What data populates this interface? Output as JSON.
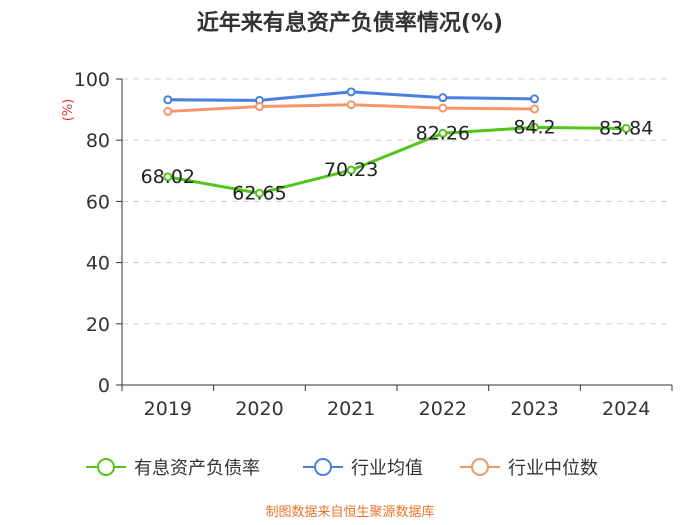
{
  "chart_data": {
    "type": "line",
    "title": "近年来有息资产负债率情况(%)",
    "ylabel": "(%)",
    "xlabel": "",
    "categories": [
      "2019",
      "2020",
      "2021",
      "2022",
      "2023",
      "2024"
    ],
    "ylim": [
      0,
      100
    ],
    "yticks": [
      0,
      20,
      40,
      60,
      80,
      100
    ],
    "grid": true,
    "legend_position": "bottom",
    "series": [
      {
        "name": "有息资产负债率",
        "color": "#52c41a",
        "values": [
          68.02,
          62.65,
          70.23,
          82.26,
          84.2,
          83.84
        ],
        "labels": [
          "68.02",
          "62.65",
          "70.23",
          "82.26",
          "84.2",
          "83.84"
        ]
      },
      {
        "name": "行业均值",
        "color": "#4a7fe0",
        "values": [
          93.2,
          93.0,
          95.8,
          93.9,
          93.5,
          null
        ]
      },
      {
        "name": "行业中位数",
        "color": "#f5956a",
        "values": [
          89.4,
          91.0,
          91.6,
          90.5,
          90.2,
          null
        ]
      }
    ],
    "source": "制图数据来自恒生聚源数据库"
  }
}
